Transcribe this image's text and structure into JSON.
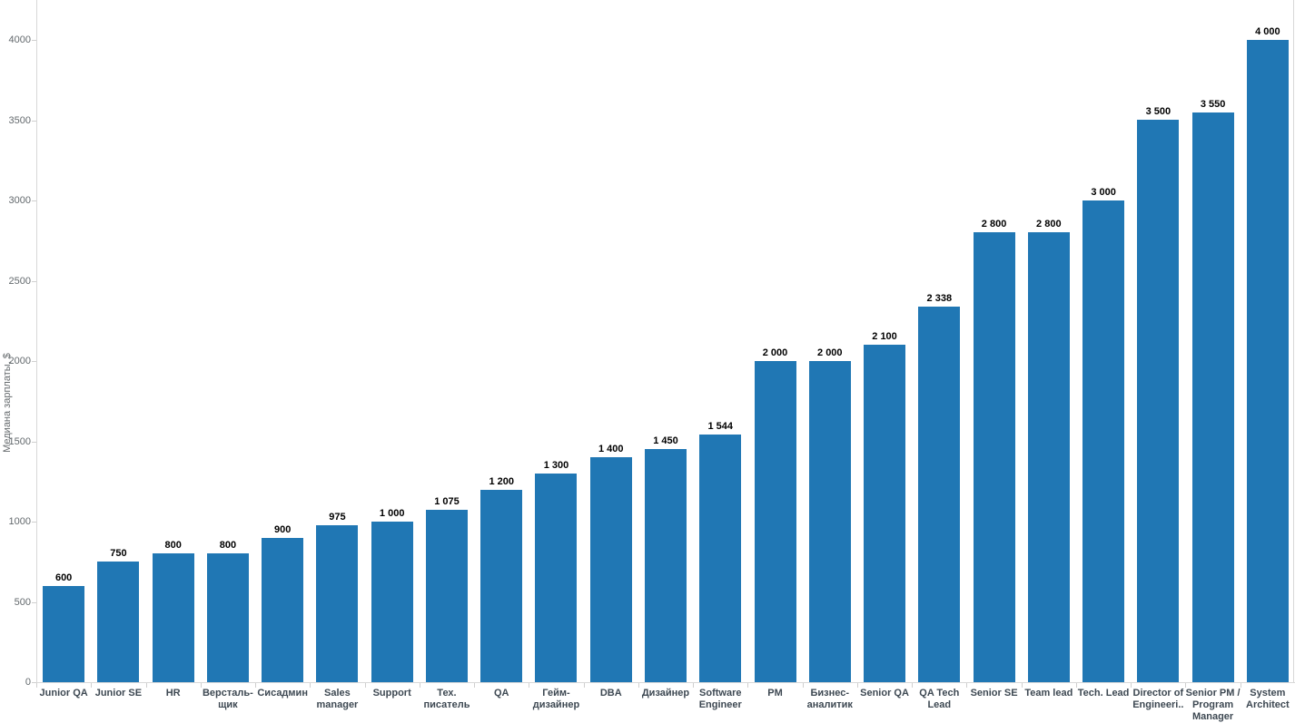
{
  "chart": {
    "bar_color": "#2077b4",
    "axis_line_color": "#d8d8d8",
    "tick_color": "#cfcfcf",
    "value_label_color": "#000000",
    "category_label_color": "#3d4852",
    "y_tick_label_color": "#63696d"
  },
  "chart_data": {
    "type": "bar",
    "title": "",
    "xlabel": "",
    "ylabel": "Медиана зарплаты, $",
    "ylim": [
      0,
      4250
    ],
    "yticks": [
      0,
      500,
      1000,
      1500,
      2000,
      2500,
      3000,
      3500,
      4000
    ],
    "grid": false,
    "legend": "none",
    "categories": [
      "Junior QA",
      "Junior SE",
      "HR",
      "Верстальщик",
      "Сисадмин",
      "Sales manager",
      "Support",
      "Тех. писатель",
      "QA",
      "Гейм-дизайнер",
      "DBA",
      "Дизайнер",
      "Software Engineer",
      "PM",
      "Бизнес-аналитик",
      "Senior QA",
      "QA Tech Lead",
      "Senior SE",
      "Team lead",
      "Tech. Lead",
      "Director of Engineeri..",
      "Senior PM / Program Manager",
      "System Architect"
    ],
    "category_display_labels": [
      "Junior QA",
      "Junior SE",
      "HR",
      "Версталь-\nщик",
      "Сисадмин",
      "Sales\nmanager",
      "Support",
      "Тех.\nписатель",
      "QA",
      "Гейм-\nдизайнер",
      "DBA",
      "Дизайнер",
      "Software\nEngineer",
      "PM",
      "Бизнес-\nаналитик",
      "Senior QA",
      "QA Tech\nLead",
      "Senior SE",
      "Team lead",
      "Tech. Lead",
      "Director of\nEngineeri..",
      "Senior PM /\nProgram\nManager",
      "System\nArchitect"
    ],
    "values": [
      600,
      750,
      800,
      800,
      900,
      975,
      1000,
      1075,
      1200,
      1300,
      1400,
      1450,
      1544,
      2000,
      2000,
      2100,
      2338,
      2800,
      2800,
      3000,
      3500,
      3550,
      4000
    ],
    "value_labels": [
      "600",
      "750",
      "800",
      "800",
      "900",
      "975",
      "1 000",
      "1 075",
      "1 200",
      "1 300",
      "1 400",
      "1 450",
      "1 544",
      "2 000",
      "2 000",
      "2 100",
      "2 338",
      "2 800",
      "2 800",
      "3 000",
      "3 500",
      "3 550",
      "4 000"
    ]
  }
}
